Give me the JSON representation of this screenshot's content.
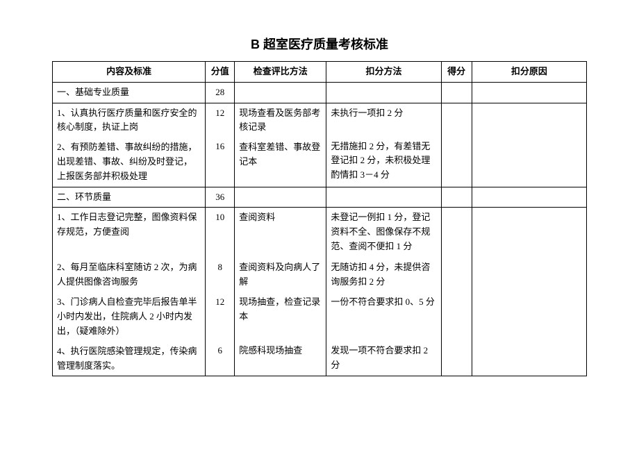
{
  "title": "B 超室医疗质量考核标准",
  "columns": [
    "内容及标准",
    "分值",
    "检查评比方法",
    "扣分方法",
    "得分",
    "扣分原因"
  ],
  "section1": {
    "label": "一、基础专业质量",
    "score": "28",
    "items": [
      {
        "content": "1、认真执行医疗质量和医疗安全的核心制度，执证上岗",
        "score": "12",
        "method": "现场查看及医务部考核记录",
        "deduct": "未执行一项扣 2 分"
      },
      {
        "content": "2、有预防差错、事故纠纷的措施，出现差错、事故、纠纷及时登记，上报医务部并积极处理",
        "score": "16",
        "method": "查科室差错、事故登记本",
        "deduct": "无措施扣 2 分，有差错无登记扣 2 分，未积极处理酌情扣 3－4 分"
      }
    ]
  },
  "section2": {
    "label": "二、环节质量",
    "score": "36",
    "items": [
      {
        "content": "1、工作日志登记完整，图像资料保存规范，方便查阅",
        "score": "10",
        "method": "查阅资料",
        "deduct": "未登记一例扣 1 分，登记资料不全、图像保存不规范、查阅不便扣 1 分"
      },
      {
        "content": "2、每月至临床科室随访 2 次，为病人提供图像咨询服务",
        "score": "8",
        "method": "查阅资料及向病人了解",
        "deduct": "无随访扣 4 分，未提供咨询服务扣 2 分"
      },
      {
        "content": "3、门诊病人自检查完毕后报告单半小时内发出，住院病人 2 小时内发出，（疑难除外）",
        "score": "12",
        "method": "现场抽查，检查记录本",
        "deduct": "一份不符合要求扣 0、5 分"
      },
      {
        "content": "4、执行医院感染管理规定，传染病管理制度落实。",
        "score": "6",
        "method": "院感科现场抽查",
        "deduct": "发现一项不符合要求扣 2分"
      }
    ]
  },
  "colors": {
    "background": "#ffffff",
    "border": "#000000",
    "text": "#000000"
  }
}
